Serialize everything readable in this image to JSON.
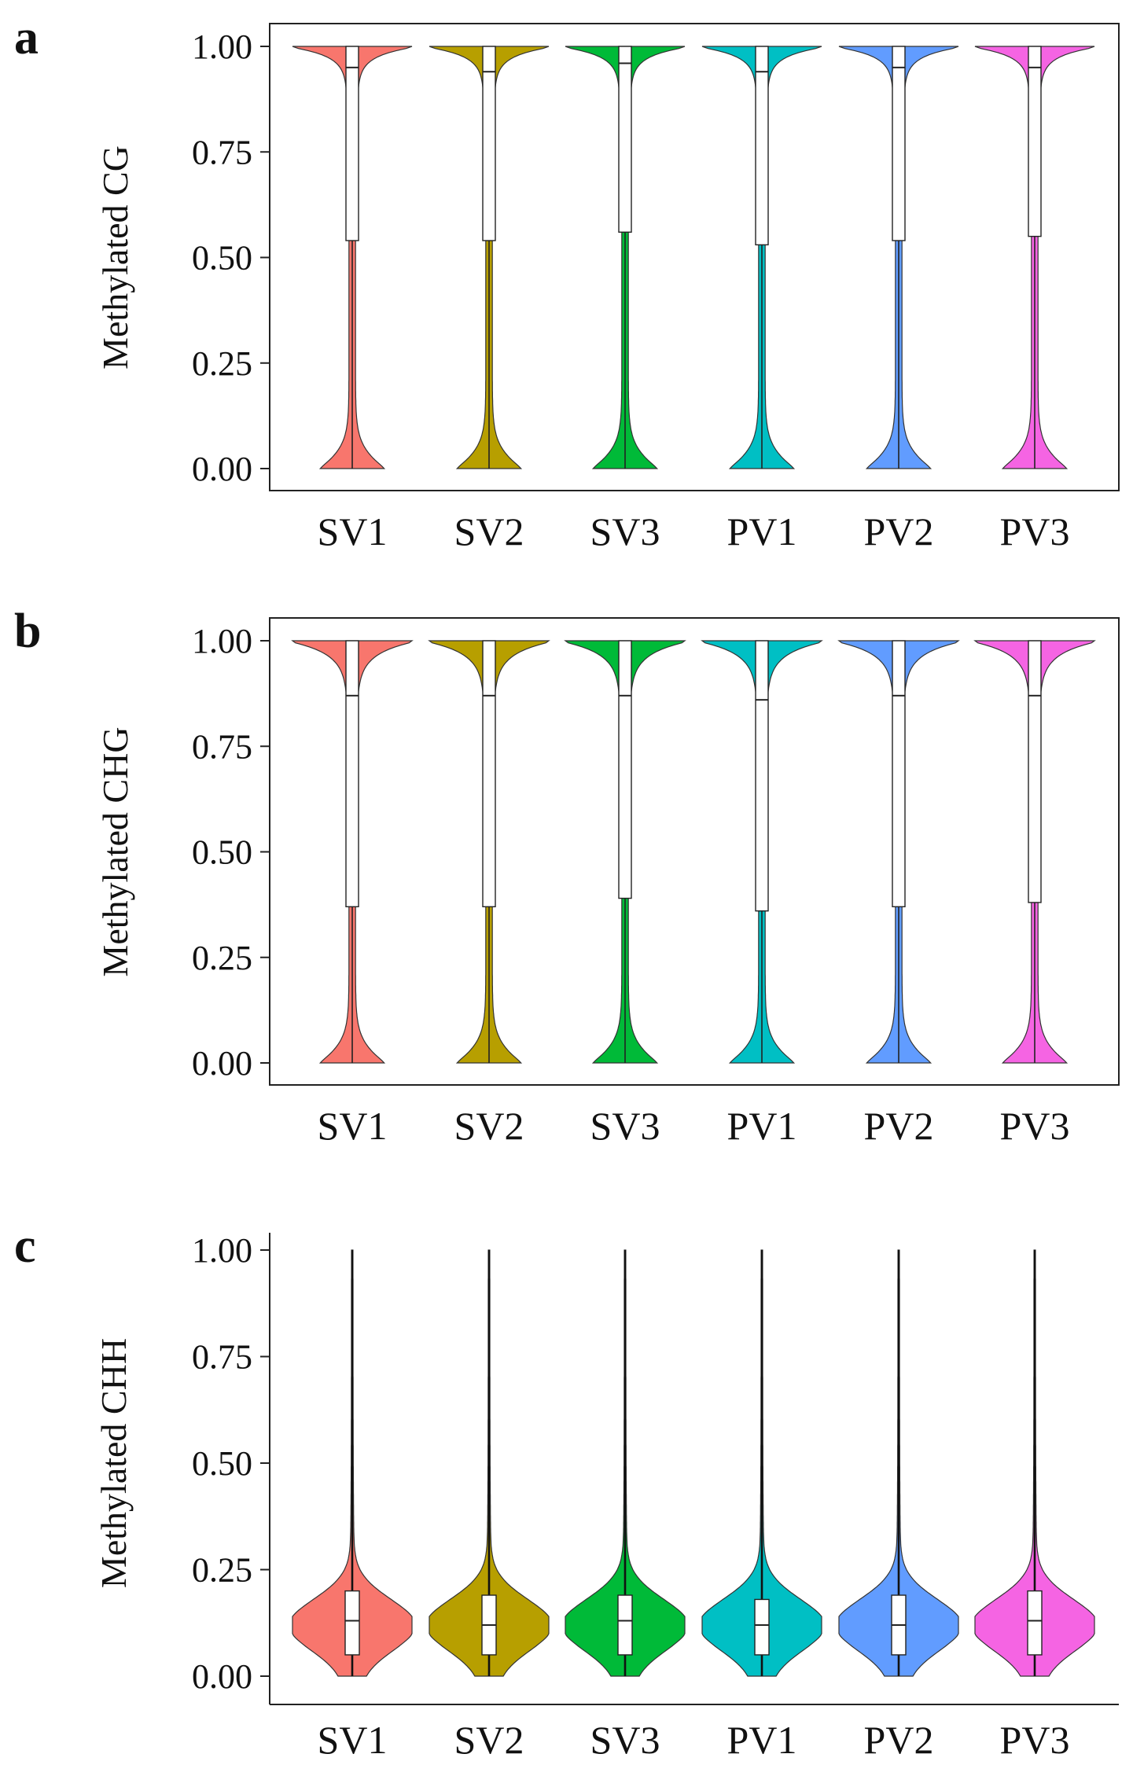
{
  "chart_data": [
    {
      "type": "violin",
      "panel": "a",
      "ylabel": "Methylated CG",
      "ylim": [
        0,
        1
      ],
      "yticks": [
        "0.00",
        "0.25",
        "0.50",
        "0.75",
        "1.00"
      ],
      "categories": [
        "SV1",
        "SV2",
        "SV3",
        "PV1",
        "PV2",
        "PV3"
      ],
      "colors": [
        "#F8766D",
        "#B79F00",
        "#00BA38",
        "#00BFC4",
        "#619CFF",
        "#F564E3"
      ],
      "framed": true,
      "series": [
        {
          "name": "SV1",
          "q1": 0.54,
          "median": 0.95,
          "q3": 1.0
        },
        {
          "name": "SV2",
          "q1": 0.54,
          "median": 0.94,
          "q3": 1.0
        },
        {
          "name": "SV3",
          "q1": 0.56,
          "median": 0.96,
          "q3": 1.0
        },
        {
          "name": "PV1",
          "q1": 0.53,
          "median": 0.94,
          "q3": 1.0
        },
        {
          "name": "PV2",
          "q1": 0.54,
          "median": 0.95,
          "q3": 1.0
        },
        {
          "name": "PV3",
          "q1": 0.55,
          "median": 0.95,
          "q3": 1.0
        }
      ]
    },
    {
      "type": "violin",
      "panel": "b",
      "ylabel": "Methylated CHG",
      "ylim": [
        0,
        1
      ],
      "yticks": [
        "0.00",
        "0.25",
        "0.50",
        "0.75",
        "1.00"
      ],
      "categories": [
        "SV1",
        "SV2",
        "SV3",
        "PV1",
        "PV2",
        "PV3"
      ],
      "colors": [
        "#F8766D",
        "#B79F00",
        "#00BA38",
        "#00BFC4",
        "#619CFF",
        "#F564E3"
      ],
      "framed": true,
      "series": [
        {
          "name": "SV1",
          "q1": 0.37,
          "median": 0.87,
          "q3": 1.0
        },
        {
          "name": "SV2",
          "q1": 0.37,
          "median": 0.87,
          "q3": 1.0
        },
        {
          "name": "SV3",
          "q1": 0.39,
          "median": 0.87,
          "q3": 1.0
        },
        {
          "name": "PV1",
          "q1": 0.36,
          "median": 0.86,
          "q3": 1.0
        },
        {
          "name": "PV2",
          "q1": 0.37,
          "median": 0.87,
          "q3": 1.0
        },
        {
          "name": "PV3",
          "q1": 0.38,
          "median": 0.87,
          "q3": 1.0
        }
      ]
    },
    {
      "type": "violin",
      "panel": "c",
      "ylabel": "Methylated CHH",
      "ylim": [
        0,
        1
      ],
      "yticks": [
        "0.00",
        "0.25",
        "0.50",
        "0.75",
        "1.00"
      ],
      "categories": [
        "SV1",
        "SV2",
        "SV3",
        "PV1",
        "PV2",
        "PV3"
      ],
      "colors": [
        "#F8766D",
        "#B79F00",
        "#00BA38",
        "#00BFC4",
        "#619CFF",
        "#F564E3"
      ],
      "framed": false,
      "series": [
        {
          "name": "SV1",
          "q1": 0.05,
          "median": 0.13,
          "q3": 0.2
        },
        {
          "name": "SV2",
          "q1": 0.05,
          "median": 0.12,
          "q3": 0.19
        },
        {
          "name": "SV3",
          "q1": 0.05,
          "median": 0.13,
          "q3": 0.19
        },
        {
          "name": "PV1",
          "q1": 0.05,
          "median": 0.12,
          "q3": 0.18
        },
        {
          "name": "PV2",
          "q1": 0.05,
          "median": 0.12,
          "q3": 0.19
        },
        {
          "name": "PV3",
          "q1": 0.05,
          "median": 0.13,
          "q3": 0.2
        }
      ]
    }
  ]
}
